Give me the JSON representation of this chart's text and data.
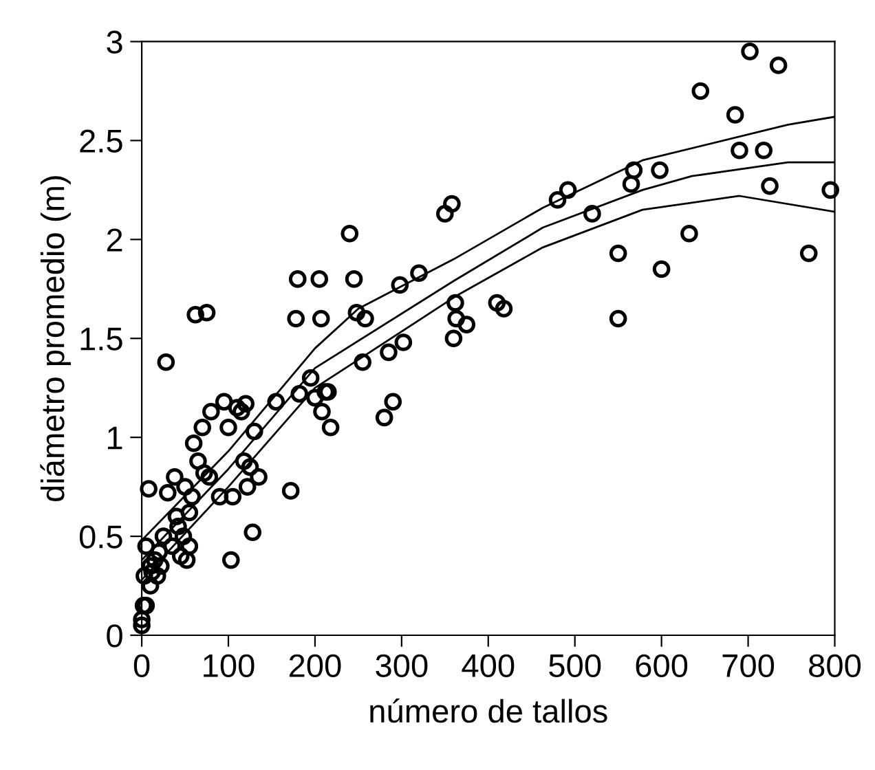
{
  "chart_data": {
    "type": "scatter",
    "xlabel": "número de tallos",
    "ylabel": "diámetro promedio (m)",
    "xlim": [
      0,
      800
    ],
    "ylim": [
      0,
      3
    ],
    "xticks": [
      0,
      100,
      200,
      300,
      400,
      500,
      600,
      700,
      800
    ],
    "yticks": [
      0,
      {
        "value": 0.5,
        "label": "0.5"
      },
      1,
      {
        "value": 1.5,
        "label": "1.5"
      },
      2,
      {
        "value": 2.5,
        "label": "2.5"
      },
      3
    ],
    "grid": false,
    "series": [
      {
        "marker": "circle",
        "color": "#000000",
        "x": [
          0,
          0,
          2,
          5,
          3,
          5,
          8,
          10,
          10,
          12,
          15,
          18,
          20,
          22,
          25,
          28,
          30,
          35,
          38,
          40,
          42,
          45,
          48,
          50,
          52,
          55,
          55,
          58,
          60,
          62,
          65,
          70,
          72,
          75,
          78,
          80,
          90,
          95,
          100,
          103,
          105,
          110,
          115,
          118,
          120,
          122,
          125,
          128,
          130,
          135,
          155,
          172,
          178,
          180,
          182,
          195,
          200,
          205,
          207,
          208,
          212,
          215,
          218,
          240,
          245,
          248,
          255,
          258,
          280,
          285,
          290,
          298,
          302,
          320,
          350,
          358,
          360,
          362,
          363,
          375,
          410,
          418,
          480,
          492,
          520,
          550,
          550,
          565,
          568,
          598,
          600,
          632,
          645,
          685,
          690,
          702,
          718,
          725,
          735,
          770,
          795
        ],
        "values": [
          0.05,
          0.08,
          0.15,
          0.15,
          0.3,
          0.45,
          0.74,
          0.25,
          0.35,
          0.32,
          0.38,
          0.3,
          0.42,
          0.35,
          0.5,
          1.38,
          0.72,
          0.45,
          0.8,
          0.6,
          0.55,
          0.4,
          0.5,
          0.75,
          0.38,
          0.45,
          0.62,
          0.7,
          0.97,
          1.62,
          0.88,
          1.05,
          0.82,
          1.63,
          0.8,
          1.13,
          0.7,
          1.18,
          1.05,
          0.38,
          0.7,
          1.15,
          1.13,
          0.88,
          1.17,
          0.75,
          0.85,
          0.52,
          1.03,
          0.8,
          1.18,
          0.73,
          1.6,
          1.8,
          1.22,
          1.3,
          1.2,
          1.8,
          1.6,
          1.13,
          1.23,
          1.23,
          1.05,
          2.03,
          1.8,
          1.63,
          1.38,
          1.6,
          1.1,
          1.43,
          1.18,
          1.77,
          1.48,
          1.83,
          2.13,
          2.18,
          1.5,
          1.68,
          1.6,
          1.57,
          1.68,
          1.65,
          2.2,
          2.25,
          2.13,
          1.93,
          1.6,
          2.28,
          2.35,
          2.35,
          1.85,
          2.03,
          2.75,
          2.63,
          2.45,
          2.95,
          2.45,
          2.27,
          2.88,
          1.93,
          2.25
        ]
      },
      {
        "type": "line",
        "marker": "none",
        "line_style": "solid",
        "color": "#000000",
        "x": [
          0,
          100,
          200,
          250,
          360,
          463,
          578,
          746,
          800
        ],
        "values": [
          0.48,
          0.93,
          1.45,
          1.65,
          1.9,
          2.16,
          2.4,
          2.58,
          2.62
        ]
      },
      {
        "type": "line",
        "marker": "none",
        "line_style": "solid",
        "color": "#000000",
        "x": [
          0,
          100,
          200,
          360,
          463,
          578,
          635,
          746,
          800
        ],
        "values": [
          0.38,
          0.84,
          1.35,
          1.79,
          2.06,
          2.25,
          2.32,
          2.39,
          2.39
        ]
      },
      {
        "type": "line",
        "marker": "none",
        "line_style": "solid",
        "color": "#000000",
        "x": [
          0,
          100,
          200,
          365,
          463,
          578,
          690,
          800
        ],
        "values": [
          0.28,
          0.75,
          1.25,
          1.72,
          1.96,
          2.15,
          2.22,
          2.14
        ]
      }
    ]
  }
}
